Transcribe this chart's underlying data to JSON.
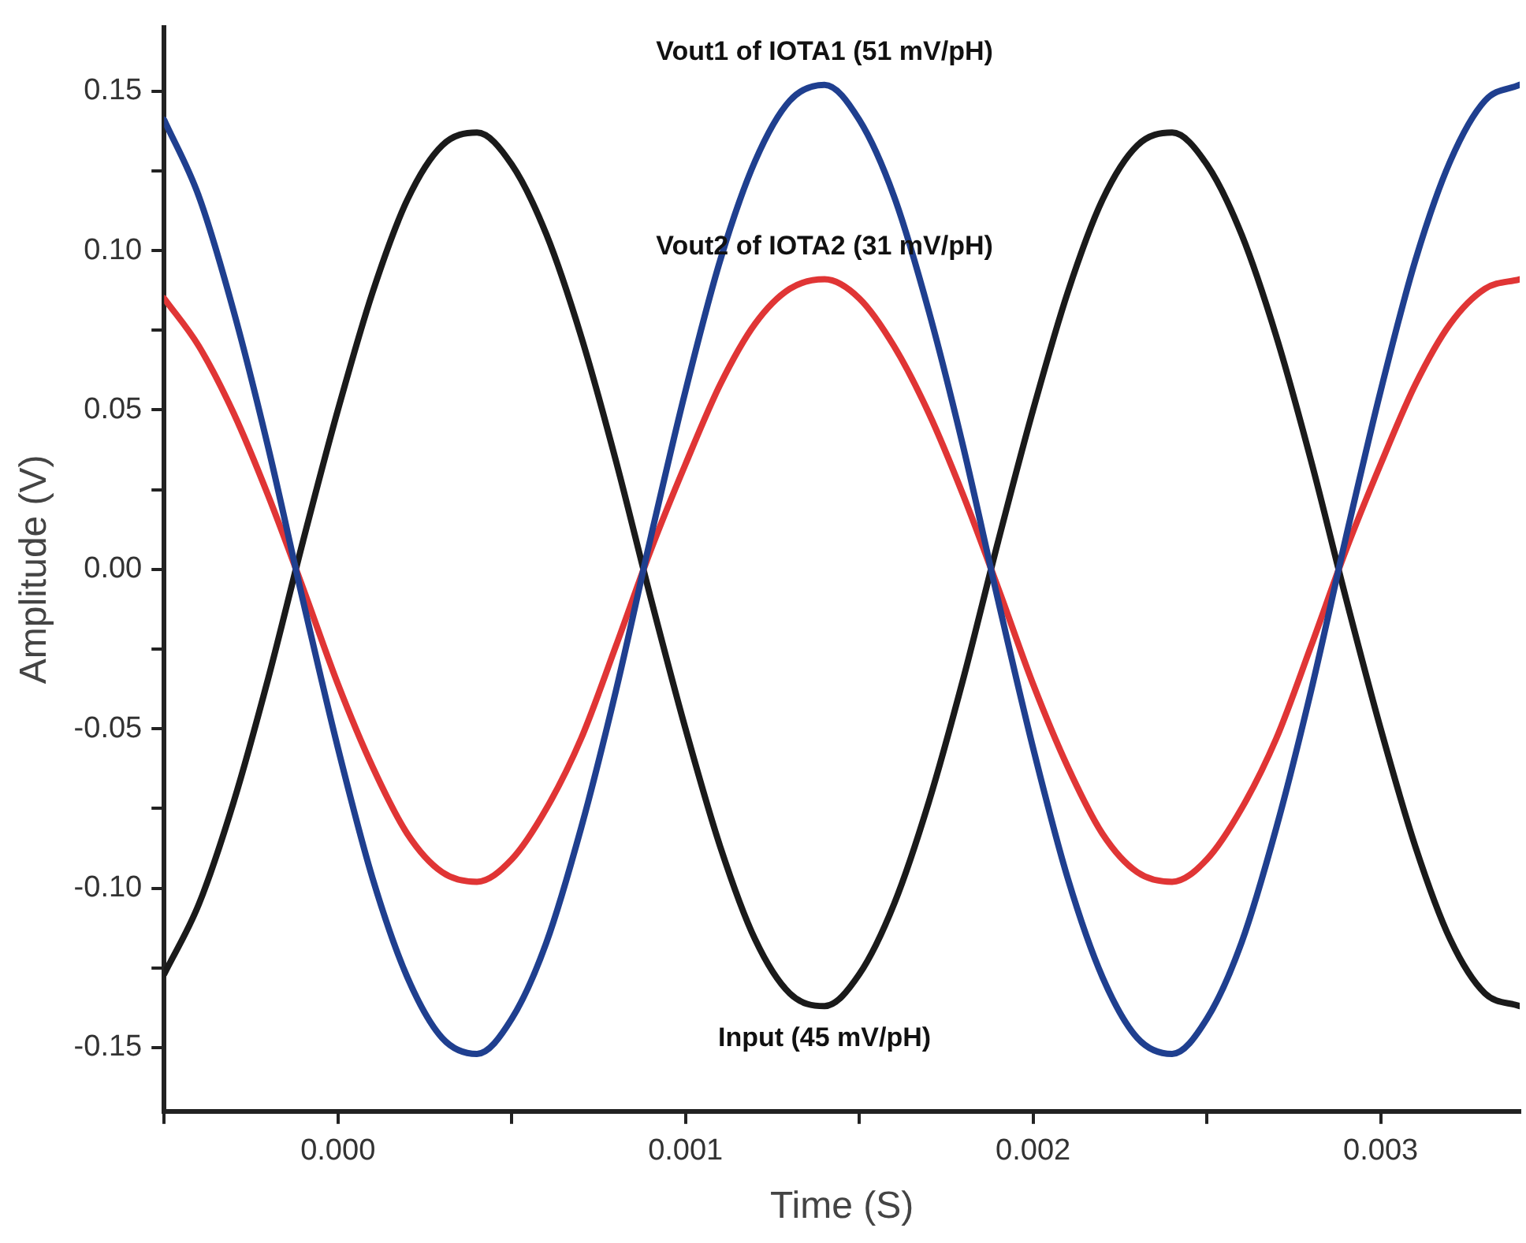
{
  "chart_data": {
    "type": "line",
    "xlabel": "Time (S)",
    "ylabel": "Amplitude (V)",
    "x": [
      -0.0005,
      -0.0004,
      -0.0003,
      -0.0002,
      -0.0001,
      0,
      0.0001,
      0.0002,
      0.0003,
      0.0004,
      0.0005,
      0.0006,
      0.0007,
      0.0008,
      0.0009,
      0.001,
      0.0011,
      0.0012,
      0.0013,
      0.0014,
      0.0015,
      0.0016,
      0.0017,
      0.0018,
      0.0019,
      0.002,
      0.0021,
      0.0022,
      0.0023,
      0.0024,
      0.0025,
      0.0026,
      0.0027,
      0.0028,
      0.0029,
      0.003,
      0.0031,
      0.0032,
      0.0033,
      0.0034
    ],
    "series": [
      {
        "name": "Vout1 of IOTA1 (51 mV/pH)",
        "color": "#1f3f8f",
        "values": [
          0.141,
          0.117,
          0.081,
          0.038,
          -0.01,
          -0.056,
          -0.097,
          -0.128,
          -0.147,
          -0.152,
          -0.141,
          -0.117,
          -0.081,
          -0.038,
          0.01,
          0.056,
          0.097,
          0.128,
          0.147,
          0.152,
          0.141,
          0.117,
          0.081,
          0.038,
          -0.01,
          -0.056,
          -0.097,
          -0.128,
          -0.147,
          -0.152,
          -0.141,
          -0.117,
          -0.081,
          -0.038,
          0.01,
          0.056,
          0.097,
          0.128,
          0.147,
          0.152
        ]
      },
      {
        "name": "Vout2 of IOTA2 (31 mV/pH)",
        "color": "#e03535",
        "values": [
          0.085,
          0.07,
          0.049,
          0.023,
          -0.006,
          -0.036,
          -0.062,
          -0.083,
          -0.095,
          -0.098,
          -0.091,
          -0.075,
          -0.053,
          -0.024,
          0.006,
          0.033,
          0.058,
          0.077,
          0.088,
          0.091,
          0.085,
          0.07,
          0.049,
          0.023,
          -0.006,
          -0.036,
          -0.062,
          -0.083,
          -0.095,
          -0.098,
          -0.091,
          -0.075,
          -0.053,
          -0.024,
          0.006,
          0.033,
          0.058,
          0.077,
          0.088,
          0.091
        ]
      },
      {
        "name": "Input (45 mV/pH)",
        "color": "#1a1a1a",
        "values": [
          -0.127,
          -0.105,
          -0.073,
          -0.034,
          0.009,
          0.05,
          0.087,
          0.116,
          0.133,
          0.137,
          0.127,
          0.105,
          0.073,
          0.034,
          -0.009,
          -0.05,
          -0.087,
          -0.116,
          -0.133,
          -0.137,
          -0.127,
          -0.105,
          -0.073,
          -0.034,
          0.009,
          0.05,
          0.087,
          0.116,
          0.133,
          0.137,
          0.127,
          0.105,
          0.073,
          0.034,
          -0.009,
          -0.05,
          -0.087,
          -0.116,
          -0.133,
          -0.137
        ]
      }
    ],
    "xlim": [
      -0.0005,
      0.0034
    ],
    "xticks": [
      {
        "value": -0.0005,
        "label": null
      },
      {
        "value": 0,
        "label": "0.000"
      },
      {
        "value": 0.0005,
        "label": null
      },
      {
        "value": 0.001,
        "label": "0.001"
      },
      {
        "value": 0.0015,
        "label": null
      },
      {
        "value": 0.002,
        "label": "0.002"
      },
      {
        "value": 0.0025,
        "label": null
      },
      {
        "value": 0.003,
        "label": "0.003"
      }
    ],
    "ylim": [
      -0.17,
      0.17
    ],
    "yticks": [
      {
        "value": -0.15,
        "label": "-0.15"
      },
      {
        "value": -0.125,
        "label": null
      },
      {
        "value": -0.1,
        "label": "-0.10"
      },
      {
        "value": -0.075,
        "label": null
      },
      {
        "value": -0.05,
        "label": "-0.05"
      },
      {
        "value": -0.025,
        "label": null
      },
      {
        "value": 0,
        "label": "0.00"
      },
      {
        "value": 0.025,
        "label": null
      },
      {
        "value": 0.05,
        "label": "0.05"
      },
      {
        "value": 0.075,
        "label": null
      },
      {
        "value": 0.1,
        "label": "0.10"
      },
      {
        "value": 0.125,
        "label": null
      },
      {
        "value": 0.15,
        "label": "0.15"
      }
    ],
    "grid": false,
    "legend": false,
    "marker": "none",
    "line_style": "solid"
  }
}
